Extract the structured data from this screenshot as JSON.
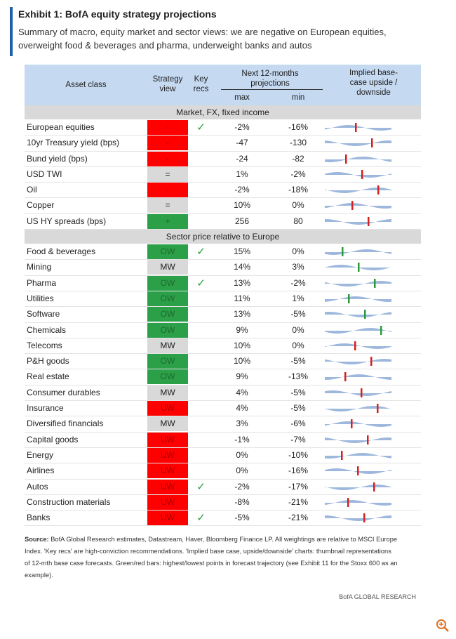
{
  "header": {
    "title": "Exhibit 1: BofA equity strategy projections",
    "subtitle_lines": [
      "Summary of macro, equity market and sector views: we are negative on European equities,",
      "overweight food & beverages and pharma, underweight banks and autos"
    ]
  },
  "table": {
    "columns": {
      "asset": "Asset class",
      "view": [
        "Strategy",
        "view"
      ],
      "key": [
        "Key",
        "recs"
      ],
      "proj": [
        "Next 12-months",
        "projections"
      ],
      "max": "max",
      "min": "min",
      "spark": [
        "Implied base-",
        "case upside /",
        "downside"
      ]
    },
    "sections": [
      {
        "title": "Market, FX, fixed income",
        "rows": [
          {
            "asset": "European equities",
            "view": "-",
            "color": "#ff0000",
            "key_rec": "✓",
            "max": "-2%",
            "min": "-16%"
          },
          {
            "asset": "10yr Treasury yield (bps)",
            "view": "-",
            "color": "#ff0000",
            "key_rec": null,
            "max": "-47",
            "min": "-130"
          },
          {
            "asset": "Bund yield (bps)",
            "view": "-",
            "color": "#ff0000",
            "key_rec": null,
            "max": "-24",
            "min": "-82"
          },
          {
            "asset": "USD TWI",
            "view": "=",
            "color": "#d9d9d9",
            "key_rec": null,
            "max": "1%",
            "min": "-2%"
          },
          {
            "asset": "Oil",
            "view": "-",
            "color": "#ff0000",
            "key_rec": null,
            "max": "-2%",
            "min": "-18%"
          },
          {
            "asset": "Copper",
            "view": "=",
            "color": "#d9d9d9",
            "key_rec": null,
            "max": "10%",
            "min": "0%"
          },
          {
            "asset": "US HY spreads (bps)",
            "view": "+",
            "color": "#2ca048",
            "key_rec": null,
            "max": "256",
            "min": "80"
          }
        ]
      },
      {
        "title": "Sector price relative to Europe",
        "rows": [
          {
            "asset": "Food & beverages",
            "view": "OW",
            "color": "#2ca048",
            "key_rec": "✓",
            "max": "15%",
            "min": "0%"
          },
          {
            "asset": "Mining",
            "view": "MW",
            "color": "#d9d9d9",
            "key_rec": null,
            "max": "14%",
            "min": "3%"
          },
          {
            "asset": "Pharma",
            "view": "OW",
            "color": "#2ca048",
            "key_rec": "✓",
            "max": "13%",
            "min": "-2%"
          },
          {
            "asset": "Utilities",
            "view": "OW",
            "color": "#2ca048",
            "key_rec": null,
            "max": "11%",
            "min": "1%"
          },
          {
            "asset": "Software",
            "view": "OW",
            "color": "#2ca048",
            "key_rec": null,
            "max": "13%",
            "min": "-5%"
          },
          {
            "asset": "Chemicals",
            "view": "OW",
            "color": "#2ca048",
            "key_rec": null,
            "max": "9%",
            "min": "0%"
          },
          {
            "asset": "Telecoms",
            "view": "MW",
            "color": "#d9d9d9",
            "key_rec": null,
            "max": "10%",
            "min": "0%"
          },
          {
            "asset": "P&H goods",
            "view": "OW",
            "color": "#2ca048",
            "key_rec": null,
            "max": "10%",
            "min": "-5%"
          },
          {
            "asset": "Real estate",
            "view": "OW",
            "color": "#2ca048",
            "key_rec": null,
            "max": "9%",
            "min": "-13%"
          },
          {
            "asset": "Consumer durables",
            "view": "MW",
            "color": "#d9d9d9",
            "key_rec": null,
            "max": "4%",
            "min": "-5%"
          },
          {
            "asset": "Insurance",
            "view": "UW",
            "color": "#ff0000",
            "key_rec": null,
            "max": "4%",
            "min": "-5%"
          },
          {
            "asset": "Diversified financials",
            "view": "MW",
            "color": "#d9d9d9",
            "key_rec": null,
            "max": "3%",
            "min": "-6%"
          },
          {
            "asset": "Capital goods",
            "view": "UW",
            "color": "#ff0000",
            "key_rec": null,
            "max": "-1%",
            "min": "-7%"
          },
          {
            "asset": "Energy",
            "view": "UW",
            "color": "#ff0000",
            "key_rec": null,
            "max": "0%",
            "min": "-10%"
          },
          {
            "asset": "Airlines",
            "view": "UW",
            "color": "#ff0000",
            "key_rec": null,
            "max": "0%",
            "min": "-16%"
          },
          {
            "asset": "Autos",
            "view": "UW",
            "color": "#ff0000",
            "key_rec": "✓",
            "max": "-2%",
            "min": "-17%"
          },
          {
            "asset": "Construction materials",
            "view": "UW",
            "color": "#ff0000",
            "key_rec": null,
            "max": "-8%",
            "min": "-21%"
          },
          {
            "asset": "Banks",
            "view": "UW",
            "color": "#ff0000",
            "key_rec": "✓",
            "max": "-5%",
            "min": "-21%"
          }
        ]
      }
    ]
  },
  "footer": {
    "source_label": "Source:",
    "source_lines": [
      " BofA Global Research estimates, Datastream, Haver, Bloomberg Finance LP. All weightings are relative to MSCI Europe",
      "Index. 'Key recs' are high-conviction recommendations. 'Implied base case, upside/downside' charts: thumbnail representations",
      "of 12-mth base case forecasts. Green/red bars: highest/lowest points in forecast trajectory (see Exhibit 11 for the Stoxx 600 as an",
      "example)."
    ],
    "brand": "BofA GLOBAL RESEARCH"
  }
}
